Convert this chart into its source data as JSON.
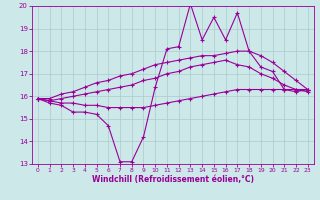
{
  "xlabel": "Windchill (Refroidissement éolien,°C)",
  "bg_color": "#cce8e8",
  "line_color": "#990099",
  "grid_color": "#aacccc",
  "xlim": [
    -0.5,
    23.5
  ],
  "ylim": [
    13,
    20
  ],
  "xticks": [
    0,
    1,
    2,
    3,
    4,
    5,
    6,
    7,
    8,
    9,
    10,
    11,
    12,
    13,
    14,
    15,
    16,
    17,
    18,
    19,
    20,
    21,
    22,
    23
  ],
  "yticks": [
    13,
    14,
    15,
    16,
    17,
    18,
    19,
    20
  ],
  "series1_y": [
    15.9,
    15.7,
    15.6,
    15.3,
    15.3,
    15.2,
    14.7,
    13.1,
    13.1,
    14.2,
    16.4,
    18.1,
    18.2,
    20.1,
    18.5,
    19.5,
    18.5,
    19.7,
    18.0,
    17.3,
    17.1,
    16.3,
    16.2,
    16.3
  ],
  "series2_y": [
    15.9,
    15.9,
    16.1,
    16.2,
    16.4,
    16.6,
    16.7,
    16.9,
    17.0,
    17.2,
    17.4,
    17.5,
    17.6,
    17.7,
    17.8,
    17.8,
    17.9,
    18.0,
    18.0,
    17.8,
    17.5,
    17.1,
    16.7,
    16.3
  ],
  "series3_y": [
    15.9,
    15.8,
    15.7,
    15.7,
    15.6,
    15.6,
    15.5,
    15.5,
    15.5,
    15.5,
    15.6,
    15.7,
    15.8,
    15.9,
    16.0,
    16.1,
    16.2,
    16.3,
    16.3,
    16.3,
    16.3,
    16.3,
    16.3,
    16.3
  ],
  "series4_y": [
    15.9,
    15.8,
    15.9,
    16.0,
    16.1,
    16.2,
    16.3,
    16.4,
    16.5,
    16.7,
    16.8,
    17.0,
    17.1,
    17.3,
    17.4,
    17.5,
    17.6,
    17.4,
    17.3,
    17.0,
    16.8,
    16.5,
    16.3,
    16.2
  ]
}
